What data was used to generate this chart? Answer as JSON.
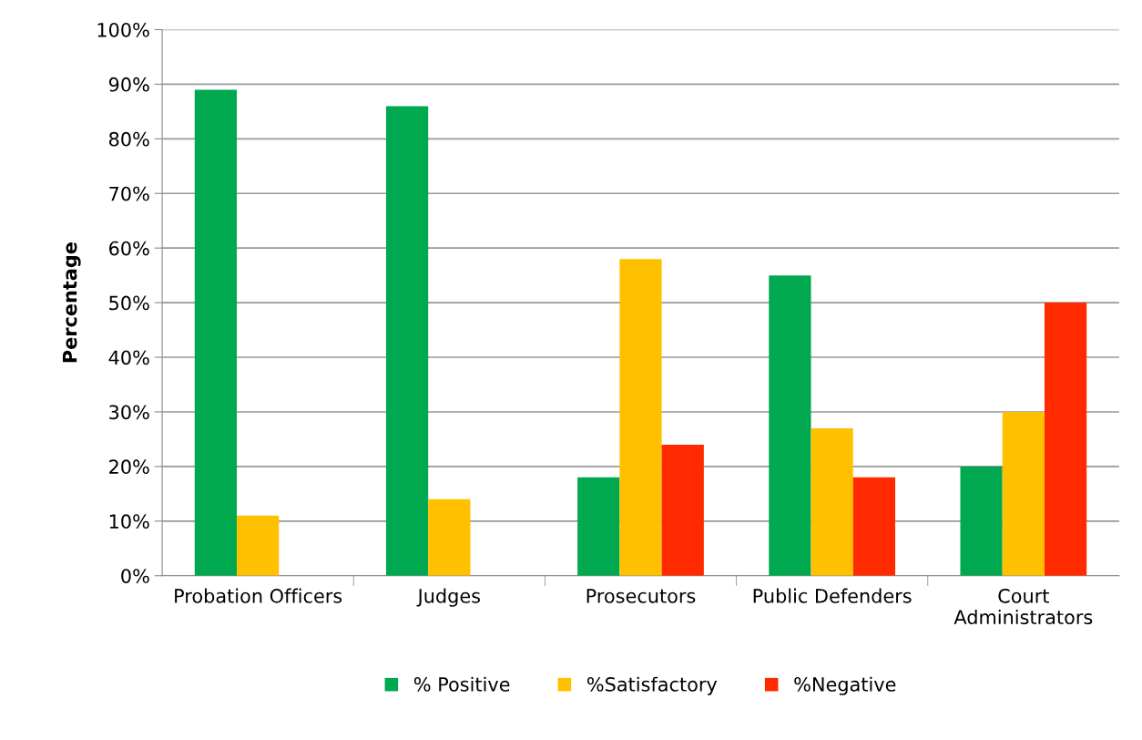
{
  "chart_data": {
    "type": "bar",
    "ylabel": "Percentage",
    "categories": [
      "Probation Officers",
      "Judges",
      "Prosecutors",
      "Public Defenders",
      "Court\nAdministrators"
    ],
    "series": [
      {
        "name": "% Positive",
        "color": "#00a94f",
        "values": [
          89,
          86,
          18,
          55,
          20
        ]
      },
      {
        "name": "%Satisfactory",
        "color": "#ffc000",
        "values": [
          11,
          14,
          58,
          27,
          30
        ]
      },
      {
        "name": "%Negative",
        "color": "#ff2a00",
        "values": [
          0,
          0,
          24,
          18,
          50
        ]
      }
    ],
    "ylim": [
      0,
      100
    ],
    "yticks": [
      {
        "value": 0,
        "label": "0%"
      },
      {
        "value": 10,
        "label": "10%"
      },
      {
        "value": 20,
        "label": "20%"
      },
      {
        "value": 30,
        "label": "30%"
      },
      {
        "value": 40,
        "label": "40%"
      },
      {
        "value": 50,
        "label": "50%"
      },
      {
        "value": 60,
        "label": "60%"
      },
      {
        "value": 70,
        "label": "70%"
      },
      {
        "value": 80,
        "label": "80%"
      },
      {
        "value": 90,
        "label": "90%"
      },
      {
        "value": 100,
        "label": "100%"
      }
    ],
    "grid": "y",
    "legend": "bottom"
  }
}
